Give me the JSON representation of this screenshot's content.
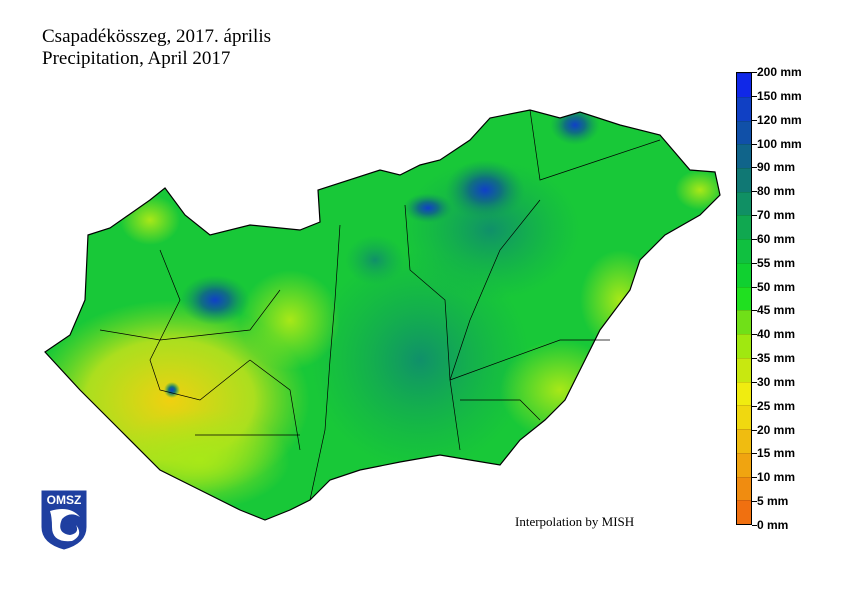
{
  "title_hu": "Csapadékösszeg, 2017. április",
  "title_en": "Precipitation, April 2017",
  "credit": "Interpolation by MISH",
  "logo_text": "OMSZ",
  "legend": {
    "unit": "mm",
    "labels": [
      "0 mm",
      "5 mm",
      "10 mm",
      "15 mm",
      "20 mm",
      "25 mm",
      "30 mm",
      "35 mm",
      "40 mm",
      "45 mm",
      "50 mm",
      "55 mm",
      "60 mm",
      "70 mm",
      "80 mm",
      "90 mm",
      "100 mm",
      "120 mm",
      "150 mm",
      "200 mm"
    ],
    "colors": [
      "#f07010",
      "#f08c10",
      "#f0a410",
      "#f0bc10",
      "#f0d810",
      "#f0ec10",
      "#c8e810",
      "#a0e810",
      "#70e018",
      "#20e020",
      "#10d030",
      "#10c040",
      "#10a850",
      "#109064",
      "#107874",
      "#10648a",
      "#1050a8",
      "#1040c4",
      "#1028e8"
    ]
  },
  "colors": {
    "border": "#000000",
    "logo": "#1f3fa0"
  }
}
